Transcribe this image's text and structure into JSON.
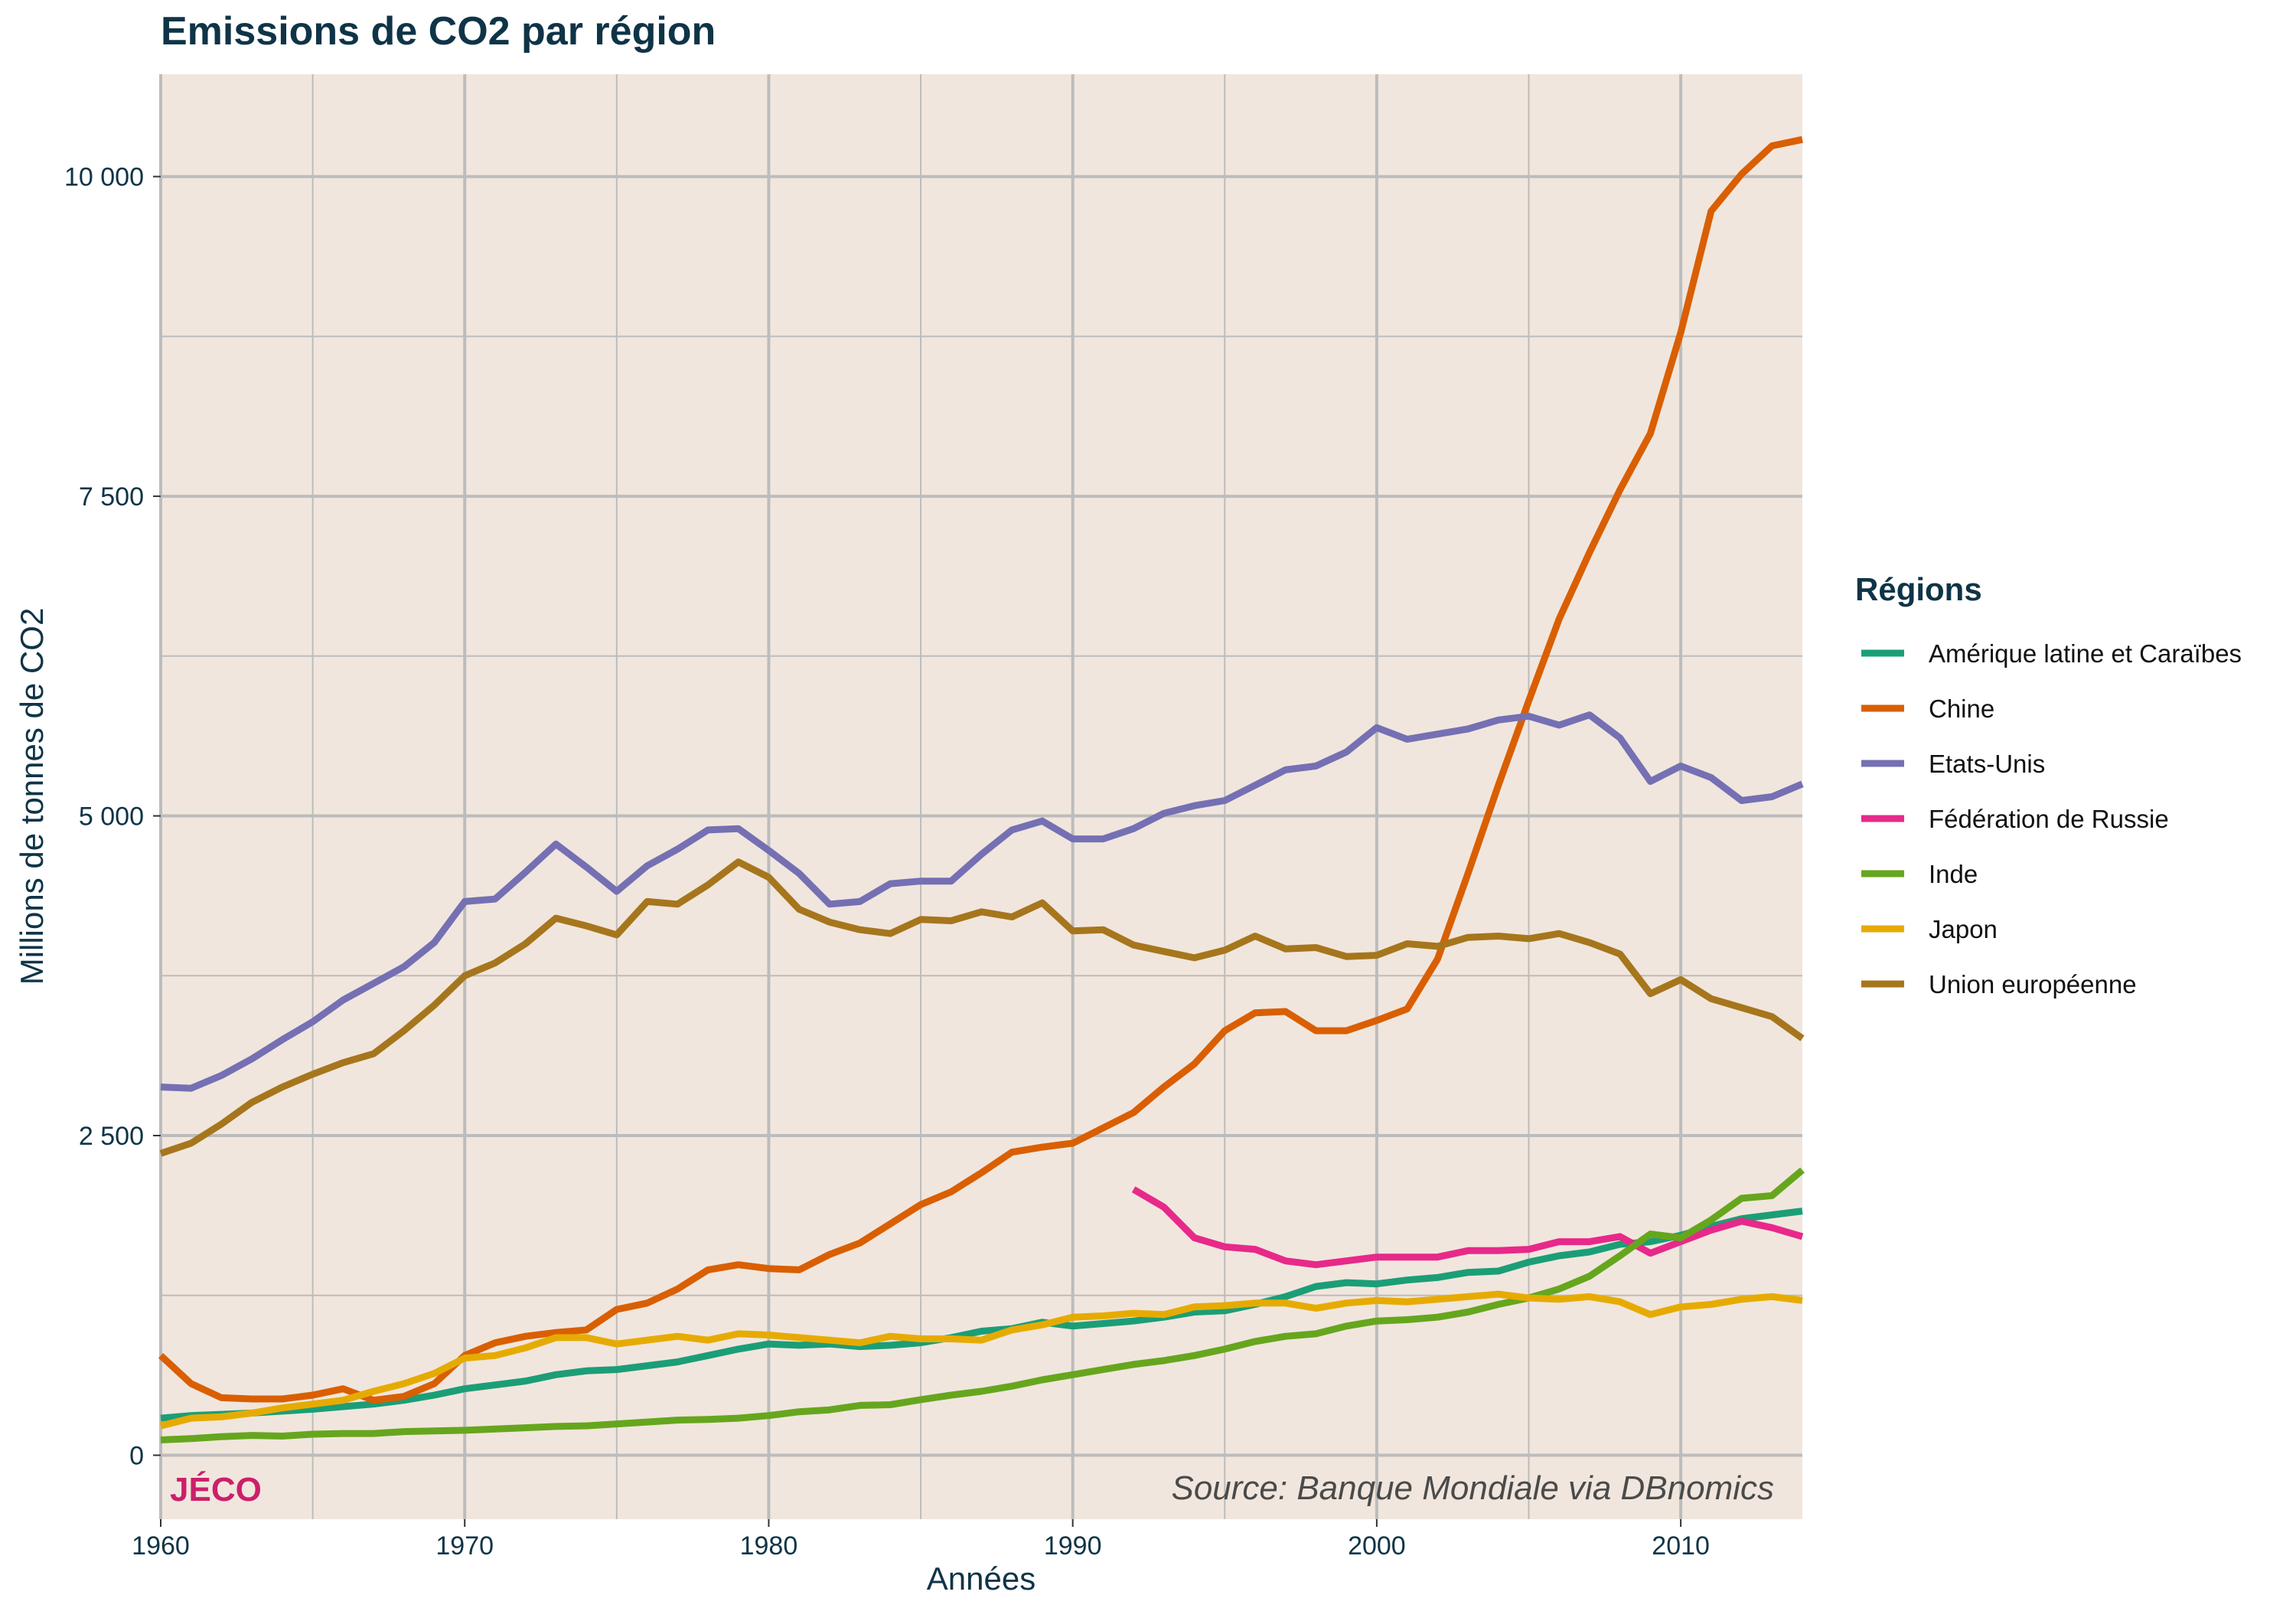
{
  "chart_data": {
    "type": "line",
    "title": "Emissions de CO2 par région",
    "xlabel": "Années",
    "ylabel": "Millions de tonnes de CO2",
    "xlim": [
      1960,
      2014
    ],
    "ylim": [
      -500,
      10800
    ],
    "x_ticks": [
      {
        "value": 1960,
        "label": "1960"
      },
      {
        "value": 1970,
        "label": "1970"
      },
      {
        "value": 1980,
        "label": "1980"
      },
      {
        "value": 1990,
        "label": "1990"
      },
      {
        "value": 2000,
        "label": "2000"
      },
      {
        "value": 2010,
        "label": "2010"
      }
    ],
    "y_ticks": [
      {
        "value": 0,
        "label": "0"
      },
      {
        "value": 2500,
        "label": "2 500"
      },
      {
        "value": 5000,
        "label": "5 000"
      },
      {
        "value": 7500,
        "label": "7 500"
      },
      {
        "value": 10000,
        "label": "10 000"
      }
    ],
    "grid": true,
    "panel_color": "#f1e6dd",
    "grid_color": "#bcbcbc",
    "legend_title": "Régions",
    "legend_position": "right",
    "series": [
      {
        "name": "Amérique latine et Caraïbes",
        "color": "#1b9e77",
        "start": 1960,
        "values": [
          290,
          310,
          320,
          330,
          345,
          360,
          380,
          400,
          430,
          470,
          520,
          550,
          580,
          630,
          660,
          670,
          700,
          730,
          780,
          830,
          870,
          860,
          870,
          850,
          860,
          880,
          920,
          970,
          990,
          1040,
          1010,
          1030,
          1050,
          1080,
          1120,
          1130,
          1180,
          1240,
          1320,
          1350,
          1340,
          1370,
          1390,
          1430,
          1440,
          1510,
          1560,
          1590,
          1650,
          1670,
          1720,
          1790,
          1850,
          1880,
          1910
        ]
      },
      {
        "name": "Chine",
        "color": "#d95f02",
        "start": 1960,
        "values": [
          780,
          560,
          450,
          440,
          440,
          470,
          520,
          430,
          460,
          560,
          780,
          880,
          930,
          960,
          980,
          1140,
          1190,
          1300,
          1450,
          1490,
          1460,
          1450,
          1570,
          1660,
          1810,
          1960,
          2060,
          2210,
          2370,
          2410,
          2440,
          2560,
          2680,
          2880,
          3060,
          3320,
          3460,
          3470,
          3320,
          3320,
          3400,
          3490,
          3880,
          4550,
          5240,
          5900,
          6540,
          7060,
          7550,
          7990,
          8780,
          9730,
          10020,
          10240,
          10290
        ]
      },
      {
        "name": "Etats-Unis",
        "color": "#7570b3",
        "start": 1960,
        "values": [
          2880,
          2870,
          2970,
          3100,
          3250,
          3390,
          3560,
          3690,
          3820,
          4010,
          4330,
          4350,
          4560,
          4780,
          4600,
          4410,
          4610,
          4740,
          4890,
          4900,
          4730,
          4550,
          4310,
          4330,
          4470,
          4490,
          4490,
          4700,
          4890,
          4960,
          4820,
          4820,
          4900,
          5020,
          5080,
          5120,
          5240,
          5360,
          5390,
          5500,
          5690,
          5600,
          5640,
          5680,
          5750,
          5780,
          5710,
          5790,
          5610,
          5270,
          5390,
          5300,
          5120,
          5150,
          5250
        ]
      },
      {
        "name": "Fédération de Russie",
        "color": "#e7298a",
        "start": 1992,
        "values": [
          2080,
          1940,
          1700,
          1630,
          1610,
          1520,
          1490,
          1520,
          1550,
          1550,
          1550,
          1600,
          1600,
          1610,
          1670,
          1670,
          1710,
          1580,
          1670,
          1760,
          1830,
          1780,
          1710
        ]
      },
      {
        "name": "Inde",
        "color": "#66a61e",
        "start": 1960,
        "values": [
          120,
          130,
          145,
          155,
          150,
          165,
          170,
          170,
          185,
          190,
          195,
          205,
          215,
          225,
          230,
          245,
          260,
          275,
          280,
          290,
          310,
          340,
          355,
          390,
          395,
          435,
          470,
          500,
          540,
          590,
          630,
          670,
          710,
          740,
          780,
          830,
          890,
          930,
          950,
          1010,
          1050,
          1060,
          1080,
          1120,
          1180,
          1230,
          1300,
          1400,
          1560,
          1730,
          1700,
          1840,
          2010,
          2030,
          2230
        ]
      },
      {
        "name": "Japon",
        "color": "#e6ab02",
        "start": 1960,
        "values": [
          230,
          290,
          300,
          330,
          370,
          400,
          430,
          500,
          560,
          640,
          760,
          780,
          840,
          920,
          920,
          870,
          900,
          930,
          900,
          950,
          940,
          920,
          900,
          880,
          930,
          910,
          910,
          900,
          980,
          1020,
          1080,
          1090,
          1110,
          1100,
          1160,
          1170,
          1190,
          1190,
          1150,
          1190,
          1210,
          1200,
          1220,
          1240,
          1260,
          1230,
          1220,
          1240,
          1200,
          1100,
          1160,
          1180,
          1220,
          1240,
          1210
        ]
      },
      {
        "name": "Union européenne",
        "color": "#a6761d",
        "start": 1960,
        "values": [
          2360,
          2440,
          2590,
          2760,
          2880,
          2980,
          3070,
          3140,
          3320,
          3520,
          3750,
          3850,
          4000,
          4200,
          4140,
          4070,
          4330,
          4310,
          4460,
          4640,
          4520,
          4270,
          4170,
          4110,
          4080,
          4190,
          4180,
          4250,
          4210,
          4320,
          4100,
          4110,
          3990,
          3940,
          3890,
          3950,
          4060,
          3960,
          3970,
          3900,
          3910,
          4000,
          3980,
          4050,
          4060,
          4040,
          4080,
          4010,
          3920,
          3610,
          3720,
          3570,
          3500,
          3430,
          3260
        ]
      }
    ]
  },
  "branding": "JÉCO",
  "branding_color": "#cc1f6a",
  "source": "Source: Banque Mondiale via DBnomics"
}
